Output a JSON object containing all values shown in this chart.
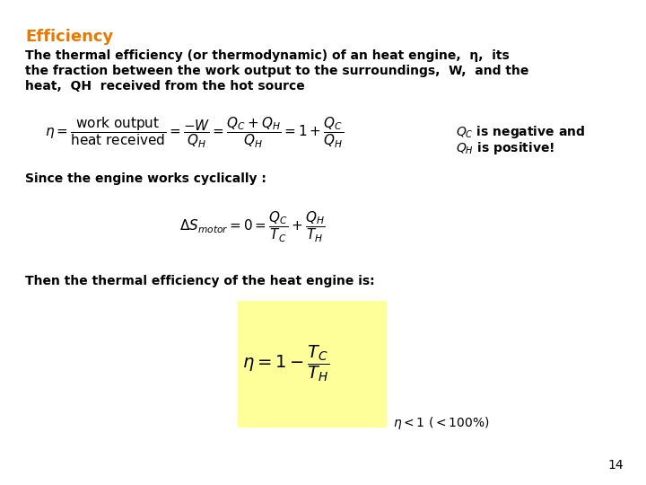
{
  "title": "Efficiency",
  "title_color": "#E87800",
  "background_color": "#FFFFFF",
  "slide_number": "14",
  "body_line1": "The thermal efficiency (or thermodynamic) of an heat engine,  , its",
  "body_line2": "the fraction between the work output to the surroundings,  W,  and the",
  "body_line3": "heat,  Q",
  "body_line3b": "  received from the hot source",
  "note_line1": "Q",
  "note_line1b": " is negative and",
  "note_line2": "Q",
  "note_line2b": " is positive!",
  "since_text": "Since the engine works cyclically :",
  "then_text": "Then the thermal efficiency of the heat engine is:",
  "eta_note": "n< 1 (<100%)",
  "highlight_color": "#FFFF99",
  "title_fontsize": 13,
  "body_fontsize": 10,
  "note_fontsize": 10,
  "eq1_fontsize": 11,
  "eq2_fontsize": 11,
  "eq3_fontsize": 14,
  "page_fontsize": 10
}
